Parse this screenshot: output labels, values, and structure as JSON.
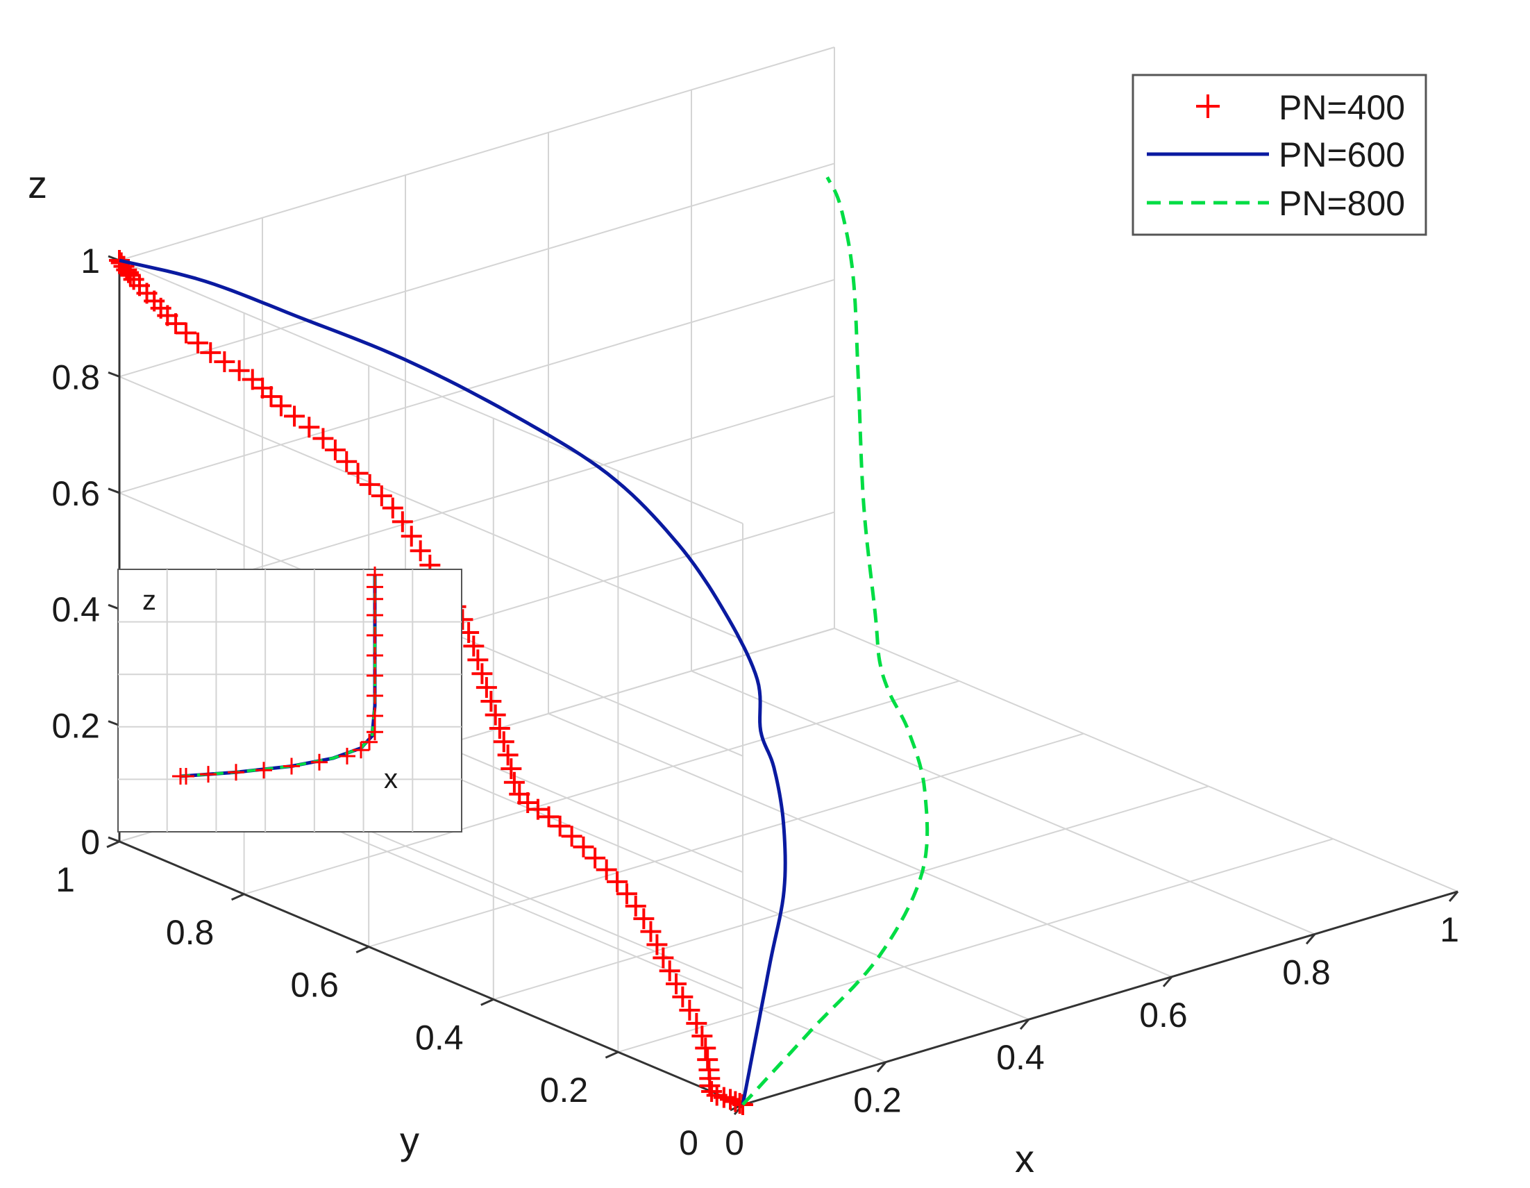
{
  "chart_data": {
    "type": "line",
    "title": "",
    "projection": "3d",
    "xlabel": "x",
    "ylabel": "y",
    "zlabel": "z",
    "xlim": [
      0,
      1
    ],
    "ylim": [
      0,
      1
    ],
    "zlim": [
      0,
      1
    ],
    "x_ticks": [
      "0",
      "0.2",
      "0.4",
      "0.6",
      "0.8",
      "1"
    ],
    "y_ticks": [
      "0",
      "0.2",
      "0.4",
      "0.6",
      "0.8",
      "1"
    ],
    "z_ticks": [
      "0",
      "0.2",
      "0.4",
      "0.6",
      "0.8",
      "1"
    ],
    "grid": true,
    "legend_position": "top-right",
    "series": [
      {
        "name": "PN=400",
        "style": "marker-plus",
        "color": "#ff0000",
        "points": [
          [
            0.0,
            0.0,
            0.0
          ],
          [
            0.0,
            0.02,
            0.0
          ],
          [
            0.0,
            0.05,
            0.0
          ],
          [
            0.04,
            0.1,
            0.0
          ],
          [
            0.1,
            0.18,
            0.0
          ],
          [
            0.16,
            0.28,
            0.0
          ],
          [
            0.22,
            0.38,
            0.0
          ],
          [
            0.28,
            0.48,
            0.0
          ],
          [
            0.33,
            0.58,
            0.0
          ],
          [
            0.37,
            0.68,
            0.0
          ],
          [
            0.4,
            0.77,
            0.0
          ],
          [
            0.42,
            0.84,
            0.0
          ],
          [
            0.43,
            0.87,
            0.05
          ],
          [
            0.43,
            0.89,
            0.11
          ],
          [
            0.42,
            0.9,
            0.18
          ],
          [
            0.41,
            0.91,
            0.25
          ],
          [
            0.39,
            0.92,
            0.32
          ],
          [
            0.36,
            0.93,
            0.4
          ],
          [
            0.33,
            0.94,
            0.48
          ],
          [
            0.29,
            0.95,
            0.55
          ],
          [
            0.25,
            0.96,
            0.62
          ],
          [
            0.2,
            0.97,
            0.69
          ],
          [
            0.16,
            0.97,
            0.75
          ],
          [
            0.11,
            0.98,
            0.81
          ],
          [
            0.07,
            0.99,
            0.87
          ],
          [
            0.04,
            0.99,
            0.92
          ],
          [
            0.02,
            1.0,
            0.96
          ],
          [
            0.01,
            1.0,
            0.98
          ],
          [
            0.0,
            1.0,
            1.0
          ]
        ]
      },
      {
        "name": "PN=600",
        "style": "solid",
        "color": "#0a1aa0",
        "points": [
          [
            0.0,
            0.0,
            0.0
          ],
          [
            0.15,
            0.15,
            0.0
          ],
          [
            0.3,
            0.3,
            0.0
          ],
          [
            0.45,
            0.45,
            0.0
          ],
          [
            0.58,
            0.6,
            0.0
          ],
          [
            0.68,
            0.73,
            0.0
          ],
          [
            0.74,
            0.82,
            0.0
          ],
          [
            0.77,
            0.86,
            0.06
          ],
          [
            0.76,
            0.9,
            0.16
          ],
          [
            0.72,
            0.93,
            0.28
          ],
          [
            0.64,
            0.95,
            0.42
          ],
          [
            0.52,
            0.97,
            0.56
          ],
          [
            0.38,
            0.98,
            0.7
          ],
          [
            0.24,
            0.99,
            0.82
          ],
          [
            0.12,
            1.0,
            0.92
          ],
          [
            0.0,
            1.0,
            1.0
          ]
        ]
      },
      {
        "name": "PN=800",
        "style": "dashed",
        "color": "#00dd44",
        "points": [
          [
            0.0,
            0.0,
            0.0
          ],
          [
            0.2,
            0.12,
            0.0
          ],
          [
            0.4,
            0.24,
            0.0
          ],
          [
            0.6,
            0.4,
            0.0
          ],
          [
            0.76,
            0.58,
            0.0
          ],
          [
            0.86,
            0.72,
            0.0
          ],
          [
            0.92,
            0.82,
            0.0
          ],
          [
            0.95,
            0.87,
            0.02
          ],
          [
            0.97,
            0.9,
            0.08
          ],
          [
            0.98,
            0.93,
            0.25
          ],
          [
            0.99,
            0.95,
            0.45
          ],
          [
            1.0,
            0.97,
            0.62
          ],
          [
            1.0,
            0.99,
            0.73
          ],
          [
            0.99,
            1.0,
            0.78
          ]
        ]
      }
    ],
    "inset": {
      "xlabel": "x",
      "zlabel": "z",
      "view": "x-z projection"
    }
  },
  "colors": {
    "grid": "#d4d4d4",
    "axis": "#333333",
    "background": "#ffffff"
  }
}
